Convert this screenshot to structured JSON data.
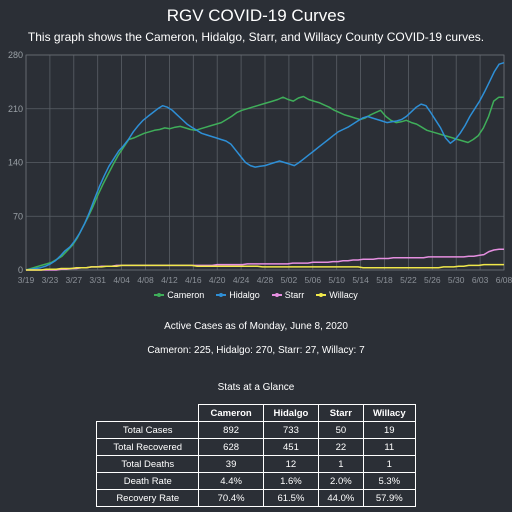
{
  "header": {
    "title": "RGV COVID-19 Curves",
    "subtitle": "This graph shows the Cameron, Hidalgo, Starr, and Willacy County COVID-19 curves."
  },
  "chart_data": {
    "type": "line",
    "x_tick_labels": [
      "3/19",
      "3/23",
      "3/27",
      "3/31",
      "4/04",
      "4/08",
      "4/12",
      "4/16",
      "4/20",
      "4/24",
      "4/28",
      "5/02",
      "5/06",
      "5/10",
      "5/14",
      "5/18",
      "5/22",
      "5/26",
      "5/30",
      "6/03",
      "6/08"
    ],
    "y_ticks": [
      0,
      70,
      140,
      210,
      280
    ],
    "ylim": [
      0,
      280
    ],
    "grid": true,
    "legend": "bottom-center",
    "series": [
      {
        "name": "Cameron",
        "color": "#3fae5a",
        "values": [
          0,
          2,
          4,
          6,
          8,
          10,
          14,
          18,
          25,
          32,
          42,
          55,
          68,
          82,
          98,
          112,
          125,
          138,
          150,
          160,
          170,
          172,
          175,
          178,
          180,
          182,
          183,
          185,
          184,
          186,
          187,
          185,
          183,
          182,
          184,
          186,
          188,
          190,
          192,
          196,
          200,
          205,
          208,
          210,
          212,
          214,
          216,
          218,
          220,
          222,
          225,
          222,
          220,
          224,
          226,
          222,
          220,
          218,
          215,
          212,
          208,
          205,
          202,
          200,
          198,
          196,
          198,
          202,
          205,
          208,
          200,
          195,
          192,
          193,
          195,
          192,
          190,
          186,
          182,
          180,
          178,
          176,
          174,
          172,
          170,
          168,
          166,
          170,
          175,
          185,
          200,
          220,
          225,
          225
        ]
      },
      {
        "name": "Hidalgo",
        "color": "#2e8fd6",
        "values": [
          0,
          1,
          2,
          3,
          5,
          8,
          12,
          18,
          25,
          30,
          38,
          48,
          60,
          75,
          92,
          108,
          122,
          135,
          145,
          155,
          162,
          170,
          180,
          188,
          195,
          200,
          205,
          210,
          214,
          212,
          208,
          202,
          196,
          190,
          186,
          182,
          178,
          176,
          174,
          172,
          170,
          168,
          164,
          156,
          148,
          140,
          136,
          134,
          135,
          136,
          138,
          140,
          142,
          140,
          138,
          136,
          140,
          145,
          150,
          155,
          160,
          165,
          170,
          175,
          180,
          183,
          186,
          190,
          194,
          198,
          200,
          198,
          196,
          194,
          192,
          193,
          194,
          196,
          200,
          206,
          212,
          216,
          214,
          205,
          195,
          185,
          172,
          165,
          170,
          178,
          188,
          200,
          210,
          220,
          232,
          245,
          258,
          268,
          270
        ]
      },
      {
        "name": "Starr",
        "color": "#e58fe0",
        "values": [
          0,
          0,
          0,
          0,
          0,
          0,
          0,
          1,
          1,
          2,
          2,
          3,
          3,
          4,
          4,
          5,
          5,
          5,
          6,
          6,
          6,
          6,
          6,
          6,
          6,
          6,
          6,
          6,
          6,
          6,
          6,
          6,
          6,
          6,
          6,
          6,
          6,
          6,
          7,
          7,
          7,
          7,
          7,
          7,
          8,
          8,
          8,
          8,
          8,
          8,
          8,
          8,
          8,
          9,
          9,
          9,
          9,
          10,
          10,
          10,
          10,
          11,
          11,
          12,
          12,
          13,
          13,
          14,
          14,
          14,
          15,
          15,
          15,
          16,
          16,
          16,
          16,
          16,
          16,
          16,
          17,
          17,
          17,
          17,
          17,
          17,
          17,
          17,
          18,
          18,
          19,
          20,
          24,
          26,
          27,
          27
        ]
      },
      {
        "name": "Willacy",
        "color": "#f0e84a",
        "values": [
          0,
          0,
          0,
          0,
          1,
          1,
          1,
          2,
          2,
          2,
          3,
          3,
          3,
          4,
          4,
          4,
          5,
          5,
          5,
          6,
          6,
          6,
          6,
          6,
          6,
          6,
          6,
          6,
          6,
          6,
          6,
          6,
          6,
          6,
          5,
          5,
          5,
          5,
          5,
          5,
          5,
          5,
          5,
          5,
          5,
          5,
          5,
          4,
          4,
          4,
          4,
          4,
          4,
          4,
          4,
          4,
          4,
          4,
          4,
          4,
          4,
          4,
          4,
          4,
          4,
          4,
          4,
          3,
          3,
          3,
          3,
          3,
          3,
          3,
          3,
          3,
          3,
          3,
          3,
          3,
          3,
          3,
          3,
          4,
          4,
          4,
          5,
          5,
          6,
          6,
          6,
          7,
          7,
          7,
          7,
          7
        ]
      }
    ]
  },
  "active_cases": {
    "title": "Active Cases as of Monday, June 8, 2020",
    "values_text": "Cameron: 225, Hidalgo: 270, Starr: 27, Willacy: 7"
  },
  "stats": {
    "title": "Stats at a Glance",
    "columns": [
      "Cameron",
      "Hidalgo",
      "Starr",
      "Willacy"
    ],
    "rows": [
      {
        "label": "Total Cases",
        "values": [
          "892",
          "733",
          "50",
          "19"
        ]
      },
      {
        "label": "Total Recovered",
        "values": [
          "628",
          "451",
          "22",
          "11"
        ]
      },
      {
        "label": "Total Deaths",
        "values": [
          "39",
          "12",
          "1",
          "1"
        ]
      },
      {
        "label": "Death Rate",
        "values": [
          "4.4%",
          "1.6%",
          "2.0%",
          "5.3%"
        ]
      },
      {
        "label": "Recovery Rate",
        "values": [
          "70.4%",
          "61.5%",
          "44.0%",
          "57.9%"
        ]
      }
    ]
  }
}
